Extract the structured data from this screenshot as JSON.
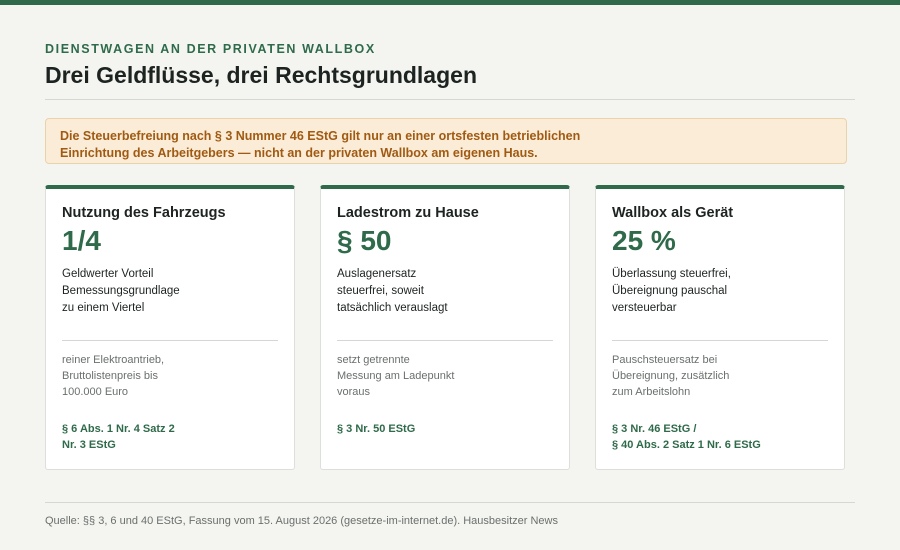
{
  "header": {
    "kicker": "DIENSTWAGEN AN DER PRIVATEN WALLBOX",
    "title": "Drei Geldflüsse, drei Rechtsgrundlagen"
  },
  "notice": {
    "lines": [
      "Die Steuerbefreiung nach § 3 Nummer 46 EStG gilt nur an einer ortsfesten betrieblichen",
      "Einrichtung des Arbeitgebers — nicht an der privaten Wallbox am eigenen Haus."
    ]
  },
  "cards": [
    {
      "title": "Nutzung des Fahrzeugs",
      "value": "1/4",
      "desc": [
        "Geldwerter Vorteil",
        "Bemessungsgrundlage",
        "zu einem Viertel"
      ],
      "note": [
        "reiner Elektroantrieb,",
        "Bruttolistenpreis bis",
        "100.000 Euro"
      ],
      "law": [
        "§ 6 Abs. 1 Nr. 4 Satz 2",
        "Nr. 3 EStG"
      ]
    },
    {
      "title": "Ladestrom zu Hause",
      "value": "§ 50",
      "desc": [
        "Auslagenersatz",
        "steuerfrei, soweit",
        "tatsächlich verauslagt"
      ],
      "note": [
        "setzt getrennte",
        "Messung am Ladepunkt",
        "voraus"
      ],
      "law": [
        "§ 3 Nr. 50 EStG",
        ""
      ]
    },
    {
      "title": "Wallbox als Gerät",
      "value": "25 %",
      "desc": [
        "Überlassung steuerfrei,",
        "Übereignung pauschal",
        "versteuerbar"
      ],
      "note": [
        "Pauschsteuersatz bei",
        "Übereignung, zusätzlich",
        "zum Arbeitslohn"
      ],
      "law": [
        "§ 3 Nr. 46 EStG /",
        "§ 40 Abs. 2 Satz 1 Nr. 6 EStG"
      ]
    }
  ],
  "footer": {
    "source": "Quelle: §§ 3, 6 und 40 EStG, Fassung vom 15. August 2026 (gesetze-im-internet.de). Hausbesitzer News"
  },
  "colors": {
    "accent": "#2f6a4a",
    "notice_bg": "#fbecd7",
    "notice_text": "#a05a12",
    "background": "#f4f5f1"
  }
}
